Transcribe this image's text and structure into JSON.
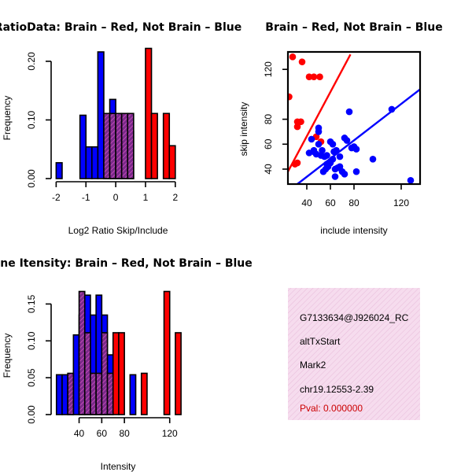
{
  "chart_data": [
    {
      "id": "hist-ratio",
      "type": "bar",
      "title": "RatioData: Brain – Red, Not Brain – Blue",
      "xlabel": "Log2 Ratio Skip/Include",
      "ylabel": "Frequency",
      "xlim": [
        -2.1,
        2.2
      ],
      "ylim": [
        0,
        0.22
      ],
      "xticks": [
        -2,
        -1,
        0,
        1,
        2
      ],
      "yticks": [
        0.0,
        0.1,
        0.2
      ],
      "ytick_labels": [
        "0.00",
        "0.10",
        "0.20"
      ],
      "bin_width": 0.2,
      "series": [
        {
          "name": "Not Brain",
          "color": "#0000ff",
          "bins": [
            {
              "x0": -2.0,
              "value": 0.027
            },
            {
              "x0": -1.2,
              "value": 0.108
            },
            {
              "x0": -1.0,
              "value": 0.054
            },
            {
              "x0": -0.8,
              "value": 0.054
            },
            {
              "x0": -0.6,
              "value": 0.216
            },
            {
              "x0": -0.4,
              "value": 0.108
            },
            {
              "x0": -0.2,
              "value": 0.135
            },
            {
              "x0": 0.0,
              "value": 0.108
            },
            {
              "x0": 0.2,
              "value": 0.108
            },
            {
              "x0": 0.4,
              "value": 0.081
            }
          ]
        },
        {
          "name": "Brain",
          "color": "#ff0000",
          "bins": [
            {
              "x0": -0.4,
              "value": 0.111
            },
            {
              "x0": -0.2,
              "value": 0.111
            },
            {
              "x0": 0.0,
              "value": 0.111
            },
            {
              "x0": 0.2,
              "value": 0.111
            },
            {
              "x0": 0.4,
              "value": 0.111
            },
            {
              "x0": 1.0,
              "value": 0.222
            },
            {
              "x0": 1.2,
              "value": 0.111
            },
            {
              "x0": 1.6,
              "value": 0.111
            },
            {
              "x0": 1.8,
              "value": 0.056
            }
          ]
        }
      ]
    },
    {
      "id": "scatter-intensity",
      "type": "scatter",
      "title": "Brain – Red, Not Brain – Blue",
      "xlabel": "include intensity",
      "ylabel": "skip intensity",
      "xlim": [
        24,
        136
      ],
      "ylim": [
        28,
        134
      ],
      "xticks": [
        40,
        60,
        80,
        120
      ],
      "yticks": [
        40,
        60,
        80,
        120
      ],
      "series": [
        {
          "name": "Brain",
          "color": "#ff0000",
          "points": [
            [
              28,
              130
            ],
            [
              36,
              126
            ],
            [
              42,
              114
            ],
            [
              46,
              114
            ],
            [
              51,
              114
            ],
            [
              25,
              98
            ],
            [
              32,
              78
            ],
            [
              35,
              78
            ],
            [
              32,
              74
            ],
            [
              30,
              44
            ],
            [
              32,
              45
            ],
            [
              48,
              66
            ],
            [
              52,
              62
            ]
          ],
          "fit": {
            "x": [
              24,
              77
            ],
            "y": [
              38,
              132
            ]
          }
        },
        {
          "name": "Not Brain",
          "color": "#0000ff",
          "points": [
            [
              50,
              70
            ],
            [
              50,
              73
            ],
            [
              53,
              55
            ],
            [
              46,
              55
            ],
            [
              42,
              53
            ],
            [
              44,
              64
            ],
            [
              46,
              54
            ],
            [
              48,
              52
            ],
            [
              50,
              60
            ],
            [
              52,
              51
            ],
            [
              55,
              50
            ],
            [
              57,
              51
            ],
            [
              60,
              62
            ],
            [
              62,
              60
            ],
            [
              63,
              54
            ],
            [
              65,
              55
            ],
            [
              68,
              50
            ],
            [
              72,
              65
            ],
            [
              74,
              63
            ],
            [
              76,
              86
            ],
            [
              78,
              57
            ],
            [
              80,
              58
            ],
            [
              82,
              56
            ],
            [
              57,
              44
            ],
            [
              60,
              45
            ],
            [
              62,
              48
            ],
            [
              64,
              40
            ],
            [
              66,
              41
            ],
            [
              68,
              42
            ],
            [
              70,
              38
            ],
            [
              72,
              36
            ],
            [
              54,
              38
            ],
            [
              56,
              40
            ],
            [
              58,
              42
            ],
            [
              64,
              34
            ],
            [
              82,
              38
            ],
            [
              96,
              48
            ],
            [
              112,
              88
            ],
            [
              128,
              31
            ]
          ],
          "fit": {
            "x": [
              32,
              136
            ],
            "y": [
              28,
              104
            ]
          }
        }
      ]
    },
    {
      "id": "hist-intensity",
      "type": "bar",
      "title": "Gene Itensity: Brain – Red, Not Brain – Blue",
      "xlabel": "Intensity",
      "ylabel": "Frequency",
      "xlim": [
        16,
        132
      ],
      "ylim": [
        0,
        0.175
      ],
      "xticks": [
        40,
        60,
        80,
        120
      ],
      "yticks": [
        0.0,
        0.05,
        0.1,
        0.15
      ],
      "ytick_labels": [
        "0.00",
        "0.05",
        "0.10",
        "0.15"
      ],
      "bin_width": 5,
      "series": [
        {
          "name": "Not Brain",
          "color": "#0000ff",
          "bins": [
            {
              "x0": 20,
              "value": 0.054
            },
            {
              "x0": 25,
              "value": 0.054
            },
            {
              "x0": 30,
              "value": 0.054
            },
            {
              "x0": 35,
              "value": 0.108
            },
            {
              "x0": 40,
              "value": 0.135
            },
            {
              "x0": 45,
              "value": 0.162
            },
            {
              "x0": 50,
              "value": 0.135
            },
            {
              "x0": 55,
              "value": 0.162
            },
            {
              "x0": 60,
              "value": 0.135
            },
            {
              "x0": 65,
              "value": 0.081
            },
            {
              "x0": 85,
              "value": 0.054
            }
          ]
        },
        {
          "name": "Brain",
          "color": "#ff0000",
          "bins": [
            {
              "x0": 30,
              "value": 0.056
            },
            {
              "x0": 40,
              "value": 0.167
            },
            {
              "x0": 45,
              "value": 0.111
            },
            {
              "x0": 50,
              "value": 0.056
            },
            {
              "x0": 55,
              "value": 0.056
            },
            {
              "x0": 60,
              "value": 0.111
            },
            {
              "x0": 65,
              "value": 0.056
            },
            {
              "x0": 70,
              "value": 0.111
            },
            {
              "x0": 75,
              "value": 0.111
            },
            {
              "x0": 95,
              "value": 0.056
            },
            {
              "x0": 115,
              "value": 0.167
            },
            {
              "x0": 125,
              "value": 0.111
            }
          ]
        }
      ]
    }
  ],
  "info_panel": {
    "lines": [
      "G7133634@J926024_RC",
      "altTxStart",
      "Mark2",
      "chr19.12553-2.39"
    ],
    "pval": "Pval: 0.000000",
    "pval_color": "#cc0000",
    "background_color": "#f5d8ec"
  }
}
